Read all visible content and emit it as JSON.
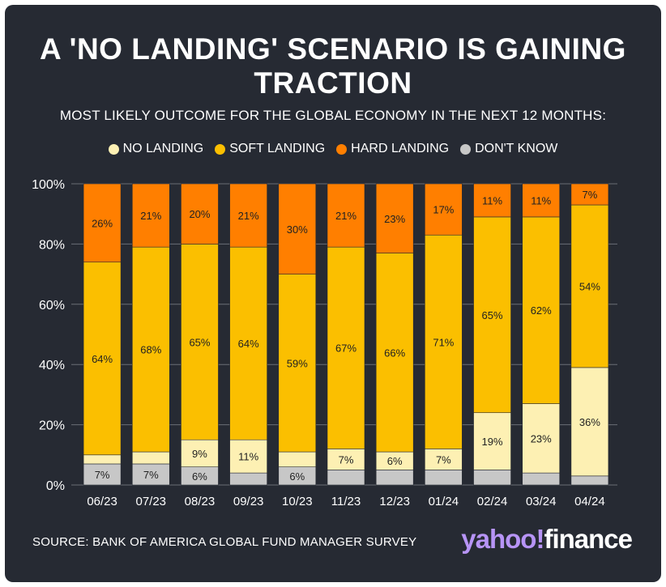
{
  "title": "A 'NO LANDING' SCENARIO IS GAINING TRACTION",
  "subtitle": "MOST LIKELY OUTCOME FOR THE GLOBAL ECONOMY IN THE NEXT 12 MONTHS:",
  "source": "SOURCE: BANK OF AMERICA GLOBAL FUND MANAGER SURVEY",
  "logo": {
    "yahoo": "yahoo!",
    "finance": "finance"
  },
  "colors": {
    "background": "#262a33",
    "no_landing": "#fdf0b3",
    "soft_landing": "#fbbf00",
    "hard_landing": "#ff7f00",
    "dont_know": "#c7c7c7"
  },
  "legend": [
    "NO LANDING",
    "SOFT LANDING",
    "HARD LANDING",
    "DON'T KNOW"
  ],
  "chart_data": {
    "type": "bar",
    "stacked": true,
    "title": "A 'NO LANDING' SCENARIO IS GAINING TRACTION",
    "subtitle": "MOST LIKELY OUTCOME FOR THE GLOBAL ECONOMY IN THE NEXT 12 MONTHS:",
    "categories": [
      "06/23",
      "07/23",
      "08/23",
      "09/23",
      "10/23",
      "11/23",
      "12/23",
      "01/24",
      "02/24",
      "03/24",
      "04/24"
    ],
    "series": [
      {
        "name": "DON'T KNOW",
        "values": [
          7,
          7,
          6,
          4,
          6,
          5,
          5,
          5,
          5,
          4,
          3
        ],
        "labels": [
          "7%",
          "7%",
          "6%",
          "",
          "6%",
          "",
          "",
          "",
          "",
          "",
          ""
        ]
      },
      {
        "name": "NO LANDING",
        "values": [
          3,
          4,
          9,
          11,
          5,
          7,
          6,
          7,
          19,
          23,
          36
        ],
        "labels": [
          "",
          "",
          "9%",
          "11%",
          "",
          "7%",
          "6%",
          "7%",
          "19%",
          "23%",
          "36%"
        ]
      },
      {
        "name": "SOFT LANDING",
        "values": [
          64,
          68,
          65,
          64,
          59,
          67,
          66,
          71,
          65,
          62,
          54
        ],
        "labels": [
          "64%",
          "68%",
          "65%",
          "64%",
          "59%",
          "67%",
          "66%",
          "71%",
          "65%",
          "62%",
          "54%"
        ]
      },
      {
        "name": "HARD LANDING",
        "values": [
          26,
          21,
          20,
          21,
          30,
          21,
          23,
          17,
          11,
          11,
          7
        ],
        "labels": [
          "26%",
          "21%",
          "20%",
          "21%",
          "30%",
          "21%",
          "23%",
          "17%",
          "11%",
          "11%",
          "7%"
        ]
      }
    ],
    "yticks": [
      "0%",
      "20%",
      "40%",
      "60%",
      "80%",
      "100%"
    ],
    "ylim": [
      0,
      100
    ],
    "grid": true,
    "legend_position": "top"
  }
}
